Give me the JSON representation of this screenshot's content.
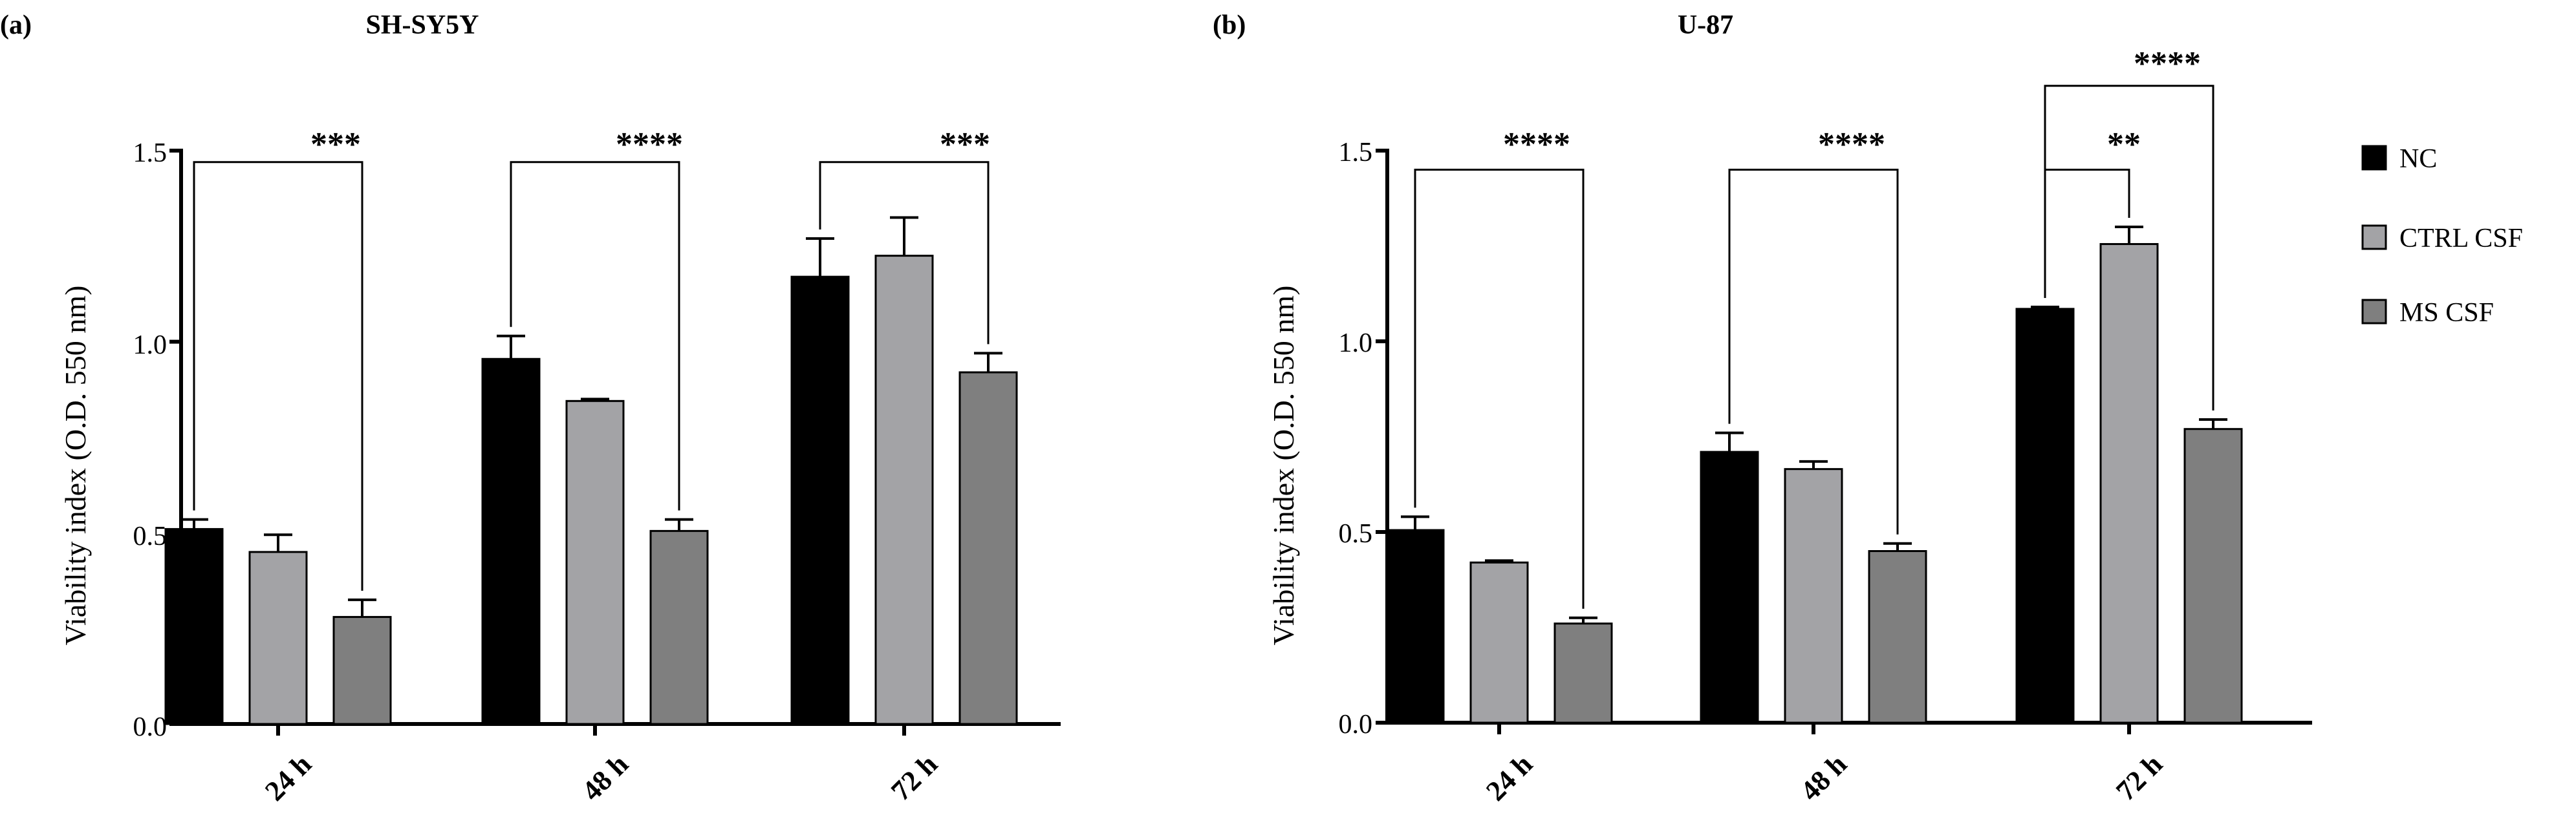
{
  "colors": {
    "NC": "#000000",
    "CTRL CSF": "#a3a3a6",
    "MS CSF": "#7f7f7f"
  },
  "legend": [
    "NC",
    "CTRL CSF",
    "MS CSF"
  ],
  "chart_data": [
    {
      "type": "bar",
      "panel_label": "(a)",
      "title": "SH-SY5Y",
      "ylabel": "Viability index (O.D. 550 nm)",
      "xlabel": "",
      "ylim": [
        0,
        1.5
      ],
      "yticks": [
        "0.0",
        "0.5",
        "1.0",
        "1.5"
      ],
      "categories": [
        "24 h",
        "48 h",
        "72 h"
      ],
      "series": [
        {
          "name": "NC",
          "values": [
            0.51,
            0.955,
            1.17
          ],
          "errors": [
            0.025,
            0.06,
            0.1
          ]
        },
        {
          "name": "CTRL CSF",
          "values": [
            0.45,
            0.845,
            1.225
          ],
          "errors": [
            0.045,
            0.005,
            0.1
          ]
        },
        {
          "name": "MS CSF",
          "values": [
            0.28,
            0.505,
            0.92
          ],
          "errors": [
            0.045,
            0.03,
            0.05
          ]
        }
      ],
      "significance": [
        {
          "category": 0,
          "from": "NC",
          "to": "MS CSF",
          "label": "***",
          "level": 1.47
        },
        {
          "category": 1,
          "from": "NC",
          "to": "MS CSF",
          "label": "****",
          "level": 1.47
        },
        {
          "category": 2,
          "from": "NC",
          "to": "MS CSF",
          "label": "***",
          "level": 1.47
        }
      ]
    },
    {
      "type": "bar",
      "panel_label": "(b)",
      "title": "U-87",
      "ylabel": "Viability index (O.D. 550 nm)",
      "xlabel": "",
      "ylim": [
        0,
        1.5
      ],
      "yticks": [
        "0.0",
        "0.5",
        "1.0",
        "1.5"
      ],
      "categories": [
        "24 h",
        "48 h",
        "72 h"
      ],
      "series": [
        {
          "name": "NC",
          "values": [
            0.505,
            0.71,
            1.085
          ],
          "errors": [
            0.035,
            0.05,
            0.005
          ]
        },
        {
          "name": "CTRL CSF",
          "values": [
            0.42,
            0.665,
            1.255
          ],
          "errors": [
            0.005,
            0.02,
            0.045
          ]
        },
        {
          "name": "MS CSF",
          "values": [
            0.26,
            0.45,
            0.77
          ],
          "errors": [
            0.015,
            0.02,
            0.025
          ]
        }
      ],
      "significance": [
        {
          "category": 0,
          "from": "NC",
          "to": "MS CSF",
          "label": "****",
          "level": 1.45
        },
        {
          "category": 1,
          "from": "NC",
          "to": "MS CSF",
          "label": "****",
          "level": 1.45
        },
        {
          "category": 2,
          "from": "NC",
          "to": "CTRL CSF",
          "label": "**",
          "level": 1.45
        },
        {
          "category": 2,
          "from": "NC",
          "to": "MS CSF",
          "label": "****",
          "level": 1.67
        }
      ]
    }
  ]
}
